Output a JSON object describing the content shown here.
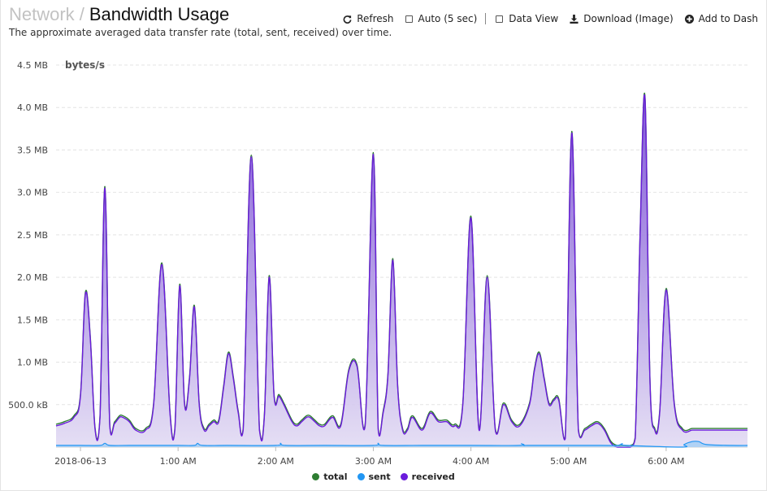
{
  "header": {
    "breadcrumb": "Network",
    "separator": "/",
    "title": "Bandwidth Usage",
    "subtitle": "The approximate averaged data transfer rate (total, sent, received) over time."
  },
  "toolbar": {
    "refresh_label": "Refresh",
    "auto_label": "Auto (5 sec)",
    "auto_checked": false,
    "data_view_label": "Data View",
    "data_view_checked": false,
    "download_label": "Download (Image)",
    "add_dash_label": "Add to Dash"
  },
  "chart_data": {
    "type": "area",
    "unit_label": "bytes/s",
    "y_tick_labels": [
      "500.0 kB",
      "1.0 MB",
      "1.5 MB",
      "2.0 MB",
      "2.5 MB",
      "3.0 MB",
      "3.5 MB",
      "4.0 MB",
      "4.5 MB"
    ],
    "y_tick_values": [
      0.5,
      1.0,
      1.5,
      2.0,
      2.5,
      3.0,
      3.5,
      4.0,
      4.5
    ],
    "ylim": [
      0,
      4.5
    ],
    "y_unit": "MB",
    "x_tick_labels": [
      "2018-06-13",
      "1:00 AM",
      "2:00 AM",
      "3:00 AM",
      "4:00 AM",
      "5:00 AM",
      "6:00 AM"
    ],
    "x_tick_minutes": [
      0,
      60,
      120,
      180,
      240,
      300,
      360
    ],
    "xlim_minutes": [
      -15,
      410
    ],
    "grid": true,
    "legend_position": "bottom",
    "colors": {
      "total": "#2e7d32",
      "sent": "#2196f3",
      "received": "#6a1bdc",
      "fill": "#d7cdf0"
    },
    "series": [
      {
        "name": "received",
        "x_minutes": [
          -15,
          -10,
          -4,
          0,
          3,
          6,
          9,
          12,
          15,
          18,
          21,
          24,
          26,
          30,
          34,
          40,
          45,
          50,
          55,
          58,
          61,
          64,
          67,
          70,
          73,
          76,
          79,
          82,
          85,
          88,
          91,
          94,
          97,
          100,
          105,
          110,
          113,
          116,
          119,
          122,
          125,
          130,
          133,
          136,
          139,
          141,
          144,
          147,
          150,
          155,
          160,
          165,
          170,
          175,
          180,
          183,
          186,
          189,
          192,
          195,
          198,
          201,
          204,
          210,
          215,
          220,
          225,
          230,
          235,
          240,
          245,
          250,
          255,
          260,
          265,
          270,
          276,
          279,
          282,
          285,
          288,
          291,
          294,
          298,
          302,
          306,
          310,
          314,
          318,
          322,
          326,
          330,
          334,
          338,
          341,
          344,
          347,
          350,
          353,
          356,
          360,
          365,
          370,
          376,
          379,
          382,
          385,
          388,
          391,
          394,
          397,
          400,
          404,
          410
        ],
        "y": [
          0.25,
          0.28,
          0.35,
          0.6,
          1.8,
          1.3,
          0.2,
          0.35,
          3.05,
          0.25,
          0.28,
          0.35,
          0.35,
          0.3,
          0.2,
          0.2,
          0.5,
          2.15,
          0.4,
          0.2,
          1.9,
          0.5,
          0.8,
          1.65,
          0.5,
          0.2,
          0.25,
          0.3,
          0.3,
          0.7,
          1.1,
          0.8,
          0.4,
          0.2,
          3.42,
          0.2,
          0.35,
          2.0,
          0.6,
          0.6,
          0.5,
          0.3,
          0.25,
          0.3,
          0.35,
          0.35,
          0.3,
          0.25,
          0.25,
          0.35,
          0.25,
          0.9,
          0.95,
          0.25,
          3.45,
          0.2,
          0.4,
          0.85,
          2.2,
          0.7,
          0.2,
          0.2,
          0.35,
          0.2,
          0.4,
          0.3,
          0.3,
          0.25,
          0.5,
          2.7,
          0.2,
          2.0,
          0.2,
          0.5,
          0.3,
          0.25,
          0.5,
          0.9,
          1.1,
          0.8,
          0.5,
          0.55,
          0.55,
          0.1,
          3.7,
          0.2,
          0.2,
          0.25,
          0.28,
          0.2,
          0.05,
          0.0,
          0.0,
          0.0,
          0.1,
          2.5,
          4.1,
          0.8,
          0.2,
          0.4,
          1.85,
          0.5,
          0.2,
          0.2,
          0.2,
          0.2,
          0.2,
          0.2,
          0.2,
          0.2,
          0.2,
          0.2,
          0.2,
          0.2
        ]
      },
      {
        "name": "sent",
        "x_minutes": [
          -15,
          0,
          12,
          15,
          18,
          30,
          60,
          70,
          72,
          75,
          90,
          120,
          123,
          126,
          150,
          180,
          183,
          186,
          210,
          240,
          270,
          271,
          273,
          275,
          300,
          320,
          330,
          333,
          336,
          370,
          371,
          376,
          380,
          385,
          400,
          410
        ],
        "y": [
          0.02,
          0.02,
          0.02,
          0.045,
          0.02,
          0.02,
          0.02,
          0.02,
          0.045,
          0.02,
          0.02,
          0.02,
          0.045,
          0.02,
          0.02,
          0.02,
          0.045,
          0.02,
          0.02,
          0.02,
          0.02,
          0.04,
          0.02,
          0.02,
          0.02,
          0.02,
          0.02,
          0.04,
          0.02,
          0.0,
          0.03,
          0.065,
          0.065,
          0.03,
          0.02,
          0.02
        ]
      },
      {
        "name": "total",
        "x_minutes": [
          -15,
          410
        ],
        "y": [
          0.27,
          0.22
        ]
      }
    ]
  }
}
